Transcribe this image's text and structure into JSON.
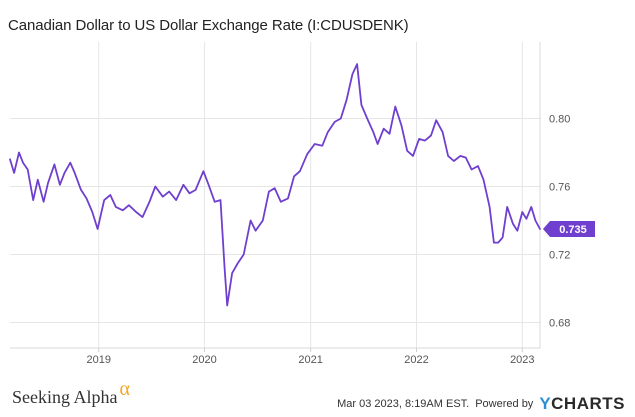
{
  "chart_data": {
    "type": "line",
    "title": "Canadian Dollar to US Dollar Exchange Rate (I:CDUSDENK)",
    "xlabel": "",
    "ylabel": "",
    "ylim": [
      0.665,
      0.845
    ],
    "xlim": [
      "2018-03-01",
      "2023-03-03"
    ],
    "y_ticks": [
      0.68,
      0.72,
      0.76,
      0.8
    ],
    "y_tick_labels": [
      "0.68",
      "0.72",
      "0.76",
      "0.80"
    ],
    "x_tick_labels": [
      "2019",
      "2020",
      "2021",
      "2022",
      "2023"
    ],
    "x_ticks": [
      "2019-01-01",
      "2020-01-01",
      "2021-01-01",
      "2022-01-01",
      "2023-01-01"
    ],
    "grid": true,
    "line_color": "#6f3fcf",
    "last_value_label": "0.735",
    "series": [
      {
        "x": [
          "2018-03-01",
          "2018-03-15",
          "2018-04-01",
          "2018-04-15",
          "2018-05-01",
          "2018-05-20",
          "2018-06-05",
          "2018-06-25",
          "2018-07-10",
          "2018-08-01",
          "2018-08-20",
          "2018-09-05",
          "2018-09-25",
          "2018-10-10",
          "2018-11-01",
          "2018-11-20",
          "2018-12-10",
          "2018-12-28",
          "2019-01-20",
          "2019-02-10",
          "2019-03-01",
          "2019-03-25",
          "2019-04-15",
          "2019-05-10",
          "2019-06-01",
          "2019-06-25",
          "2019-07-15",
          "2019-08-10",
          "2019-09-01",
          "2019-09-25",
          "2019-10-20",
          "2019-11-10",
          "2019-12-01",
          "2019-12-28",
          "2020-01-15",
          "2020-02-05",
          "2020-02-25",
          "2020-03-10",
          "2020-03-19",
          "2020-04-05",
          "2020-04-25",
          "2020-05-15",
          "2020-06-08",
          "2020-06-25",
          "2020-07-20",
          "2020-08-10",
          "2020-08-30",
          "2020-09-20",
          "2020-10-15",
          "2020-11-05",
          "2020-11-25",
          "2020-12-20",
          "2021-01-15",
          "2021-02-10",
          "2021-03-01",
          "2021-03-25",
          "2021-04-15",
          "2021-05-05",
          "2021-05-25",
          "2021-06-10",
          "2021-06-25",
          "2021-07-15",
          "2021-08-05",
          "2021-08-20",
          "2021-09-10",
          "2021-09-30",
          "2021-10-20",
          "2021-11-10",
          "2021-11-30",
          "2021-12-20",
          "2022-01-10",
          "2022-01-30",
          "2022-02-20",
          "2022-03-10",
          "2022-04-01",
          "2022-04-20",
          "2022-05-10",
          "2022-06-01",
          "2022-06-20",
          "2022-07-10",
          "2022-08-01",
          "2022-08-20",
          "2022-09-10",
          "2022-09-25",
          "2022-10-10",
          "2022-10-25",
          "2022-11-10",
          "2022-11-30",
          "2022-12-15",
          "2023-01-01",
          "2023-01-15",
          "2023-02-01",
          "2023-02-15",
          "2023-03-03"
        ],
        "y": [
          0.776,
          0.768,
          0.78,
          0.774,
          0.77,
          0.752,
          0.764,
          0.751,
          0.762,
          0.773,
          0.761,
          0.768,
          0.774,
          0.768,
          0.758,
          0.753,
          0.745,
          0.735,
          0.752,
          0.755,
          0.748,
          0.746,
          0.749,
          0.745,
          0.742,
          0.751,
          0.76,
          0.754,
          0.757,
          0.752,
          0.761,
          0.756,
          0.758,
          0.769,
          0.761,
          0.751,
          0.752,
          0.712,
          0.69,
          0.709,
          0.715,
          0.72,
          0.74,
          0.734,
          0.74,
          0.757,
          0.759,
          0.751,
          0.753,
          0.766,
          0.769,
          0.779,
          0.785,
          0.784,
          0.792,
          0.798,
          0.8,
          0.811,
          0.826,
          0.832,
          0.808,
          0.8,
          0.792,
          0.785,
          0.794,
          0.791,
          0.807,
          0.796,
          0.781,
          0.778,
          0.788,
          0.787,
          0.79,
          0.799,
          0.792,
          0.778,
          0.775,
          0.778,
          0.777,
          0.77,
          0.772,
          0.764,
          0.748,
          0.727,
          0.727,
          0.73,
          0.748,
          0.738,
          0.734,
          0.745,
          0.741,
          0.748,
          0.74,
          0.735
        ]
      }
    ]
  },
  "footer": {
    "brand": "Seeking Alpha",
    "brand_symbol": "α",
    "timestamp": "Mar 03 2023, 8:19AM EST.",
    "powered_by": "Powered by",
    "ycharts_y": "Y",
    "ycharts_rest": "CHARTS"
  }
}
